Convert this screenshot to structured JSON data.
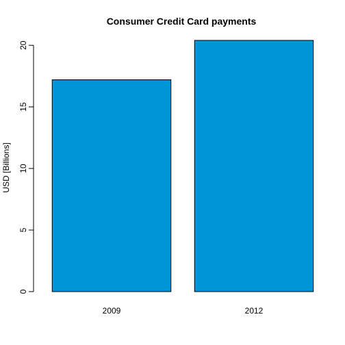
{
  "chart_data": {
    "type": "bar",
    "title": "Consumer Credit Card payments",
    "xlabel": "",
    "ylabel": "USD [Billions]",
    "categories": [
      "2009",
      "2012"
    ],
    "values": [
      17.2,
      20.4
    ],
    "ylim": [
      0,
      20.4
    ],
    "y_ticks": [
      0,
      5,
      10,
      15,
      20
    ],
    "y_tick_labels": [
      "0",
      "5",
      "10",
      "15",
      "20"
    ],
    "bar_color": "#0096D6",
    "bar_outline_color": "#000000",
    "grid": false,
    "legend": "none"
  }
}
